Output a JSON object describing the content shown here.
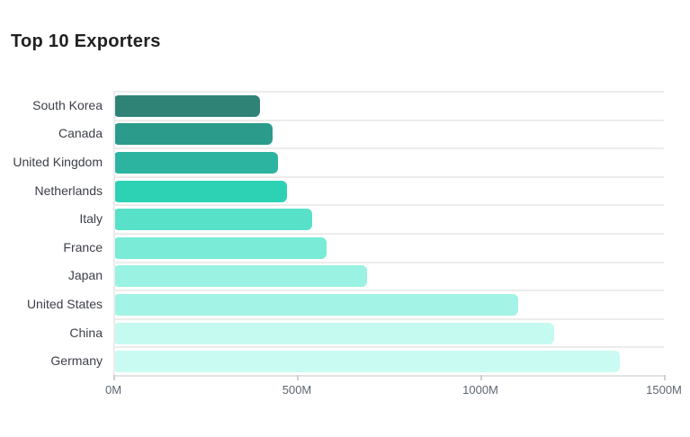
{
  "page": {
    "background": "#ffffff"
  },
  "header": {
    "title": "Top 10 Exporters"
  },
  "chart_data": {
    "type": "bar",
    "orientation": "horizontal",
    "title": "Top 10 Exporters",
    "categories": [
      "South Korea",
      "Canada",
      "United Kingdom",
      "Netherlands",
      "Italy",
      "France",
      "Japan",
      "United States",
      "China",
      "Germany"
    ],
    "values": [
      400,
      433,
      449,
      472,
      542,
      582,
      692,
      1102,
      1202,
      1381
    ],
    "unit": "M",
    "xlabel": "",
    "ylabel": "",
    "xlim": [
      0,
      1500
    ],
    "x_ticks": [
      "0M",
      "500M",
      "1000M",
      "1500M"
    ],
    "x_tick_values": [
      0,
      500,
      1000,
      1500
    ],
    "bar_colors": [
      "#2e8376",
      "#2b9c8c",
      "#2db4a0",
      "#2cd2b3",
      "#57e1c9",
      "#79ebd7",
      "#99f2e2",
      "#a3f4e6",
      "#c5faf0",
      "#c9fbf2"
    ],
    "grid": "horizontal-row-separators",
    "legend": "none"
  },
  "colors": {
    "gridline": "#ececec",
    "axis_line": "#e3e3e3",
    "tick_mark": "#cfcfcf",
    "category_label": "#3d4049",
    "tick_label": "#5f6673",
    "title": "#212121"
  }
}
